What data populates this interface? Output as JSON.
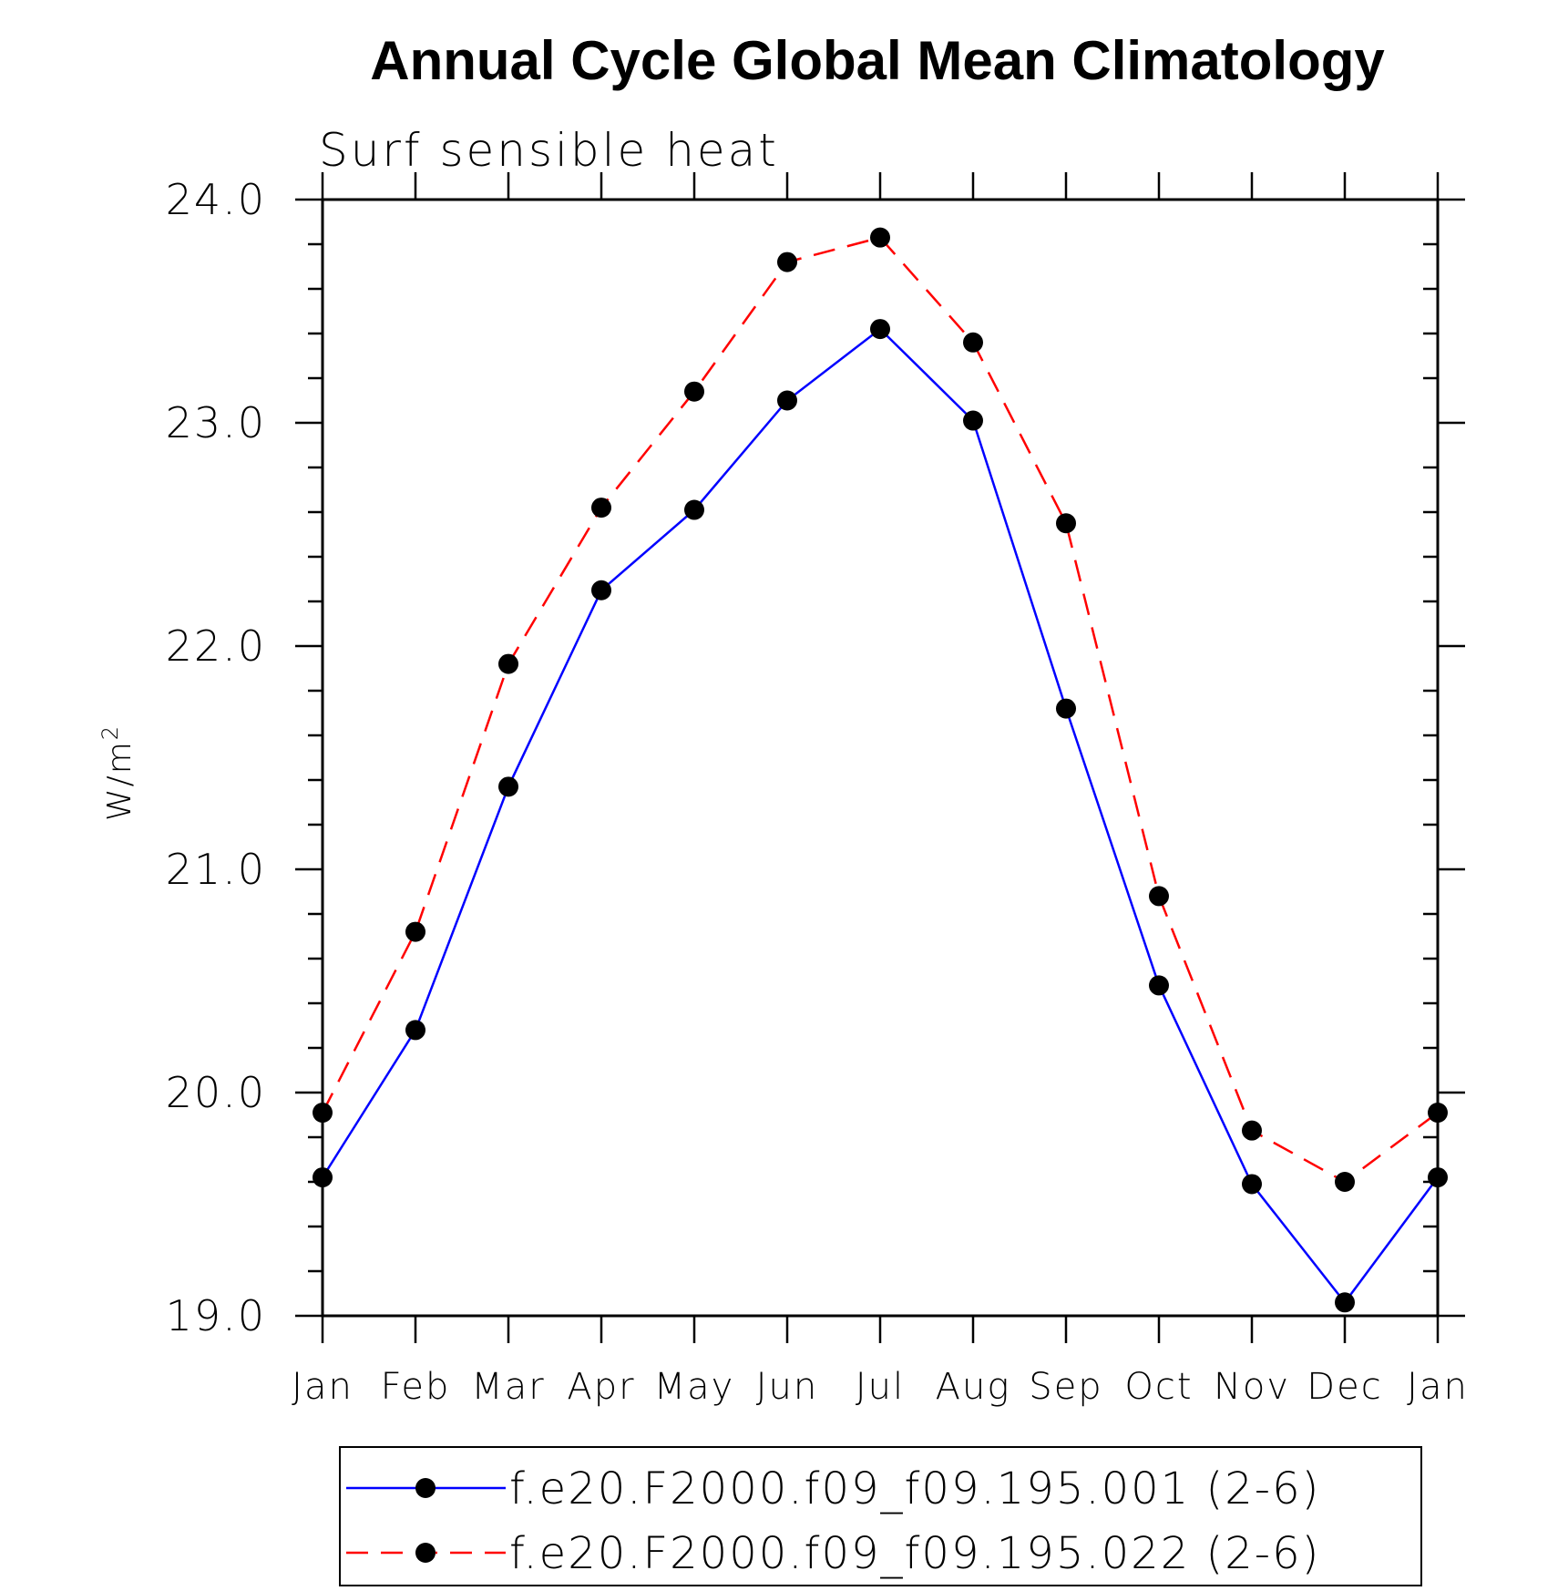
{
  "chart_data": {
    "type": "line",
    "title": "Annual Cycle Global Mean Climatology",
    "subtitle": "Surf sensible heat",
    "ylabel": "W/m",
    "ylabel_superscript": "2",
    "xlabel": "",
    "categories": [
      "Jan",
      "Feb",
      "Mar",
      "Apr",
      "May",
      "Jun",
      "Jul",
      "Aug",
      "Sep",
      "Oct",
      "Nov",
      "Dec",
      "Jan"
    ],
    "ylim": [
      19.0,
      24.0
    ],
    "yticks": [
      "19.0",
      "20.0",
      "21.0",
      "22.0",
      "23.0",
      "24.0"
    ],
    "series": [
      {
        "name": "f.e20.F2000.f09_f09.195.001 (2-6)",
        "color": "#0000ff",
        "dash": "solid",
        "values": [
          19.62,
          20.28,
          21.37,
          22.25,
          22.61,
          23.1,
          23.42,
          23.01,
          21.72,
          20.48,
          19.59,
          19.06,
          19.62
        ]
      },
      {
        "name": "f.e20.F2000.f09_f09.195.022 (2-6)",
        "color": "#ff0000",
        "dash": "dashed",
        "values": [
          19.91,
          20.72,
          21.92,
          22.62,
          23.14,
          23.72,
          23.83,
          23.36,
          22.55,
          20.88,
          19.83,
          19.6,
          19.91
        ]
      }
    ],
    "grid": false,
    "legend_position": "bottom"
  }
}
